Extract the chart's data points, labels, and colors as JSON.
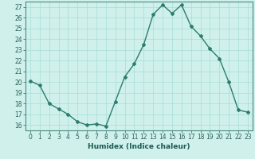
{
  "x": [
    0,
    1,
    2,
    3,
    4,
    5,
    6,
    7,
    8,
    9,
    10,
    11,
    12,
    13,
    14,
    15,
    16,
    17,
    18,
    19,
    20,
    21,
    22,
    23
  ],
  "y": [
    20.1,
    19.7,
    18.0,
    17.5,
    17.0,
    16.3,
    16.0,
    16.1,
    15.9,
    18.2,
    20.5,
    21.7,
    23.5,
    26.3,
    27.2,
    26.4,
    27.2,
    25.2,
    24.3,
    23.1,
    22.2,
    20.0,
    17.4,
    17.2
  ],
  "xlabel": "Humidex (Indice chaleur)",
  "xlim": [
    -0.5,
    23.5
  ],
  "ylim": [
    15.5,
    27.5
  ],
  "yticks": [
    16,
    17,
    18,
    19,
    20,
    21,
    22,
    23,
    24,
    25,
    26,
    27
  ],
  "xticks": [
    0,
    1,
    2,
    3,
    4,
    5,
    6,
    7,
    8,
    9,
    10,
    11,
    12,
    13,
    14,
    15,
    16,
    17,
    18,
    19,
    20,
    21,
    22,
    23
  ],
  "line_color": "#2d7d6e",
  "marker": "D",
  "marker_size": 2.0,
  "line_width": 1.0,
  "bg_color": "#cff0eb",
  "grid_color": "#a8ddd7",
  "tick_fontsize": 5.5,
  "xlabel_fontsize": 6.5
}
